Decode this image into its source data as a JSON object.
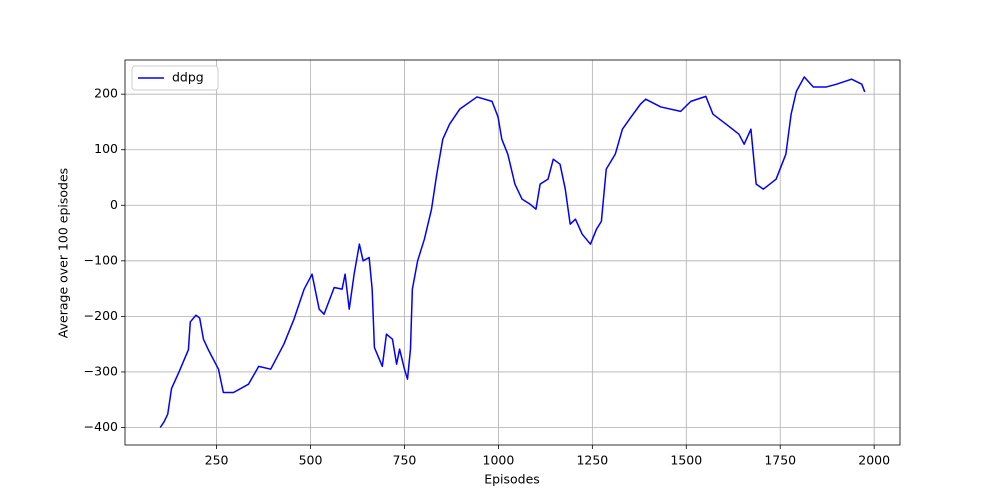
{
  "chart_data": {
    "type": "line",
    "x_label": "Episodes",
    "y_label": "Average over 100 episodes",
    "x": [
      100,
      110,
      120,
      130,
      150,
      175,
      180,
      195,
      205,
      215,
      228,
      255,
      268,
      295,
      335,
      362,
      394,
      429,
      456,
      483,
      504,
      523,
      536,
      563,
      584,
      592,
      603,
      616,
      630,
      640,
      656,
      664,
      670,
      683,
      691,
      702,
      718,
      729,
      737,
      750,
      758,
      766,
      771,
      785,
      803,
      822,
      836,
      852,
      870,
      897,
      943,
      983,
      999,
      1009,
      1025,
      1044,
      1063,
      1084,
      1100,
      1111,
      1132,
      1146,
      1164,
      1178,
      1191,
      1205,
      1223,
      1245,
      1261,
      1274,
      1287,
      1311,
      1330,
      1353,
      1378,
      1392,
      1432,
      1485,
      1512,
      1552,
      1571,
      1606,
      1640,
      1654,
      1672,
      1686,
      1705,
      1739,
      1765,
      1779,
      1793,
      1814,
      1838,
      1873,
      1900,
      1940,
      1967,
      1975
    ],
    "series": [
      {
        "name": "ddpg",
        "color": "#0000ff",
        "values": [
          -400,
          -390,
          -376,
          -330,
          -300,
          -260,
          -210,
          -198,
          -203,
          -241,
          -260,
          -295,
          -337,
          -337,
          -322,
          -290,
          -295,
          -250,
          -205,
          -151,
          -124,
          -187,
          -196,
          -148,
          -151,
          -124,
          -187,
          -124,
          -70,
          -100,
          -94,
          -151,
          -256,
          -277,
          -290,
          -232,
          -241,
          -286,
          -259,
          -295,
          -313,
          -259,
          -151,
          -100,
          -61,
          -7,
          56,
          119,
          146,
          173,
          195,
          187,
          159,
          119,
          92,
          38,
          11,
          2,
          -7,
          38,
          47,
          83,
          74,
          29,
          -34,
          -25,
          -52,
          -70,
          -43,
          -29,
          65,
          92,
          137,
          159,
          182,
          191,
          177,
          169,
          187,
          196,
          164,
          146,
          128,
          110,
          137,
          38,
          29,
          47,
          92,
          164,
          205,
          231,
          213,
          213,
          218,
          227,
          218,
          204
        ]
      }
    ],
    "xlim": [
      6.25,
      2068.75
    ],
    "ylim": [
      -431.5,
      261.5
    ],
    "xticks": [
      250,
      500,
      750,
      1000,
      1250,
      1500,
      1750,
      2000
    ],
    "yticks": [
      {
        "value": -400,
        "label": "−400"
      },
      {
        "value": -300,
        "label": "−300"
      },
      {
        "value": -200,
        "label": "−200"
      },
      {
        "value": -100,
        "label": "−100"
      },
      0,
      100,
      200
    ],
    "grid": true,
    "legend": "upper left"
  }
}
